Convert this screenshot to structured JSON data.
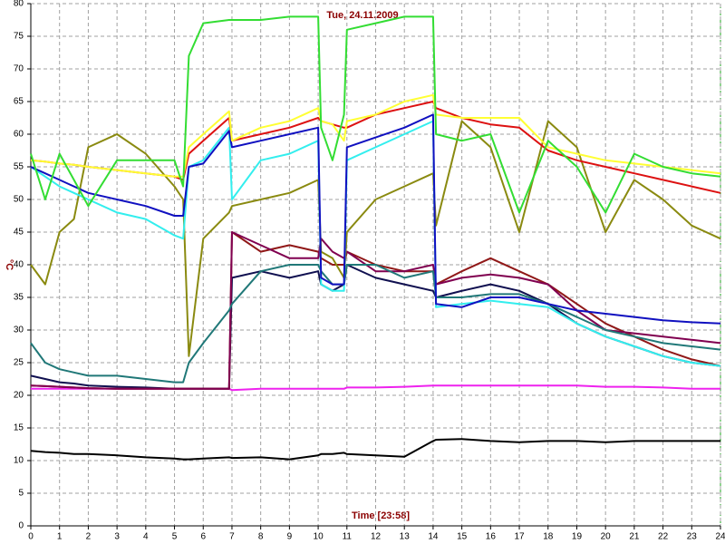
{
  "chart_data": {
    "type": "line",
    "title": "Tue, 24.11.2009",
    "x_label": "Time [23:58]",
    "y_label": "°C",
    "xlim": [
      0,
      24
    ],
    "ylim": [
      0,
      80
    ],
    "xticks": [
      0,
      1,
      2,
      3,
      4,
      5,
      6,
      7,
      8,
      9,
      10,
      11,
      12,
      13,
      14,
      15,
      16,
      17,
      18,
      19,
      20,
      21,
      22,
      23,
      24
    ],
    "yticks": [
      0,
      5,
      10,
      15,
      20,
      25,
      30,
      35,
      40,
      45,
      50,
      55,
      60,
      65,
      70,
      75,
      80
    ],
    "grid": true,
    "x": [
      0,
      0.5,
      1,
      1.5,
      2,
      3,
      4,
      5,
      5.3,
      5.5,
      6,
      6.9,
      7,
      8,
      9,
      10,
      10.1,
      10.5,
      10.9,
      11,
      12,
      13,
      14,
      14.1,
      15,
      16,
      17,
      18,
      19,
      20,
      21,
      22,
      23,
      24
    ],
    "series": [
      {
        "color": "#000000",
        "values": [
          11.5,
          11.3,
          11.2,
          11,
          11,
          10.8,
          10.5,
          10.3,
          10.2,
          10.2,
          10.3,
          10.5,
          10.4,
          10.5,
          10.2,
          10.8,
          11,
          11,
          11.2,
          11,
          10.8,
          10.6,
          13,
          13.2,
          13.3,
          13,
          12.8,
          13,
          13,
          12.8,
          13,
          13,
          13,
          13
        ]
      },
      {
        "color": "#ee22ee",
        "values": [
          21,
          21,
          21,
          21,
          21,
          21,
          21,
          21,
          21,
          21,
          21,
          21,
          20.8,
          21,
          21,
          21,
          21,
          21,
          21,
          21.2,
          21.2,
          21.3,
          21.5,
          21.5,
          21.5,
          21.5,
          21.5,
          21.5,
          21.5,
          21.3,
          21.3,
          21.2,
          21,
          21
        ]
      },
      {
        "color": "#101050",
        "values": [
          23,
          22.5,
          22,
          21.8,
          21.5,
          21.3,
          21.2,
          21,
          21,
          21,
          21,
          21,
          38,
          39,
          38,
          39,
          37,
          36,
          37,
          40,
          38,
          37,
          36,
          35,
          36,
          37,
          36,
          34,
          31,
          29,
          27.5,
          26,
          25,
          24.5
        ]
      },
      {
        "color": "#901818",
        "values": [
          21.5,
          21.4,
          21.3,
          21.2,
          21.1,
          21,
          21,
          21,
          21,
          21,
          21,
          21,
          45,
          42,
          43,
          42,
          41,
          40,
          40,
          42,
          40,
          39,
          39,
          37,
          39,
          41,
          39,
          37,
          34,
          31,
          29,
          27,
          25.5,
          24.5
        ]
      },
      {
        "color": "#800050",
        "values": [
          21.5,
          21.4,
          21.3,
          21.2,
          21.1,
          21,
          21,
          21,
          21,
          21,
          21,
          21,
          45,
          43,
          41,
          41,
          44,
          42,
          41,
          42,
          39,
          39,
          40,
          37,
          38,
          38.5,
          38,
          37,
          33,
          30,
          29.5,
          29,
          28.5,
          28
        ]
      },
      {
        "color": "#207878",
        "values": [
          28,
          25,
          24,
          23.5,
          23,
          23,
          22.5,
          22,
          22,
          25,
          28,
          33,
          34,
          39,
          40,
          40,
          39,
          37,
          37,
          40,
          40,
          38,
          39,
          35,
          35,
          35.5,
          35.5,
          34,
          32,
          30,
          29,
          28,
          27.5,
          27
        ]
      },
      {
        "color": "#8a8a10",
        "values": [
          40,
          37,
          45,
          47,
          58,
          60,
          57,
          52,
          50,
          26,
          44,
          48,
          49,
          50,
          51,
          53,
          42,
          41,
          38,
          45,
          50,
          52,
          54,
          46,
          62,
          58,
          45,
          62,
          58,
          45,
          53,
          50,
          46,
          44
        ]
      },
      {
        "color": "#33eeee",
        "values": [
          55,
          53.5,
          52,
          51,
          50,
          48,
          47,
          44.5,
          44,
          55,
          56,
          61,
          50,
          56,
          57,
          59,
          37,
          36,
          36,
          56,
          58,
          60,
          62,
          33.5,
          34,
          34.5,
          34,
          33.5,
          31,
          29,
          27.5,
          26,
          25,
          24.5
        ]
      },
      {
        "color": "#1010c0",
        "values": [
          55,
          54,
          53,
          52,
          51,
          50,
          49,
          47.5,
          47.5,
          55,
          55.5,
          60.5,
          58,
          59,
          60,
          61,
          38,
          37,
          37,
          58,
          59.5,
          61,
          63,
          34,
          33.5,
          35,
          35,
          34,
          33,
          32.5,
          32,
          31.5,
          31.2,
          31
        ]
      },
      {
        "color": "#dd1111",
        "values": [
          56,
          55.8,
          55.5,
          55.3,
          55,
          54.5,
          54,
          53.5,
          53,
          57,
          59,
          62.5,
          59,
          60,
          61,
          62.5,
          62,
          61.5,
          61,
          61,
          63,
          64,
          65,
          64,
          62.5,
          61.5,
          61,
          57.5,
          56,
          55,
          54,
          53,
          52,
          51
        ]
      },
      {
        "color": "#ffff33",
        "values": [
          56,
          55.8,
          55.5,
          55.3,
          55,
          54.5,
          54,
          53.5,
          53.5,
          58,
          60,
          63.5,
          59,
          61,
          62,
          64,
          62,
          61.5,
          59,
          62,
          63,
          65,
          66,
          63,
          62.5,
          62.5,
          62.5,
          58,
          57,
          56,
          55.5,
          55,
          54.5,
          54
        ]
      },
      {
        "color": "#33dd33",
        "values": [
          57,
          50,
          57,
          53,
          49,
          56,
          56,
          56,
          52,
          72,
          77,
          77.5,
          77.5,
          77.5,
          78,
          78,
          61,
          56,
          63,
          76,
          77,
          78,
          78,
          60,
          59,
          60,
          48,
          59,
          55,
          48,
          57,
          55,
          54,
          53.5
        ]
      }
    ]
  }
}
